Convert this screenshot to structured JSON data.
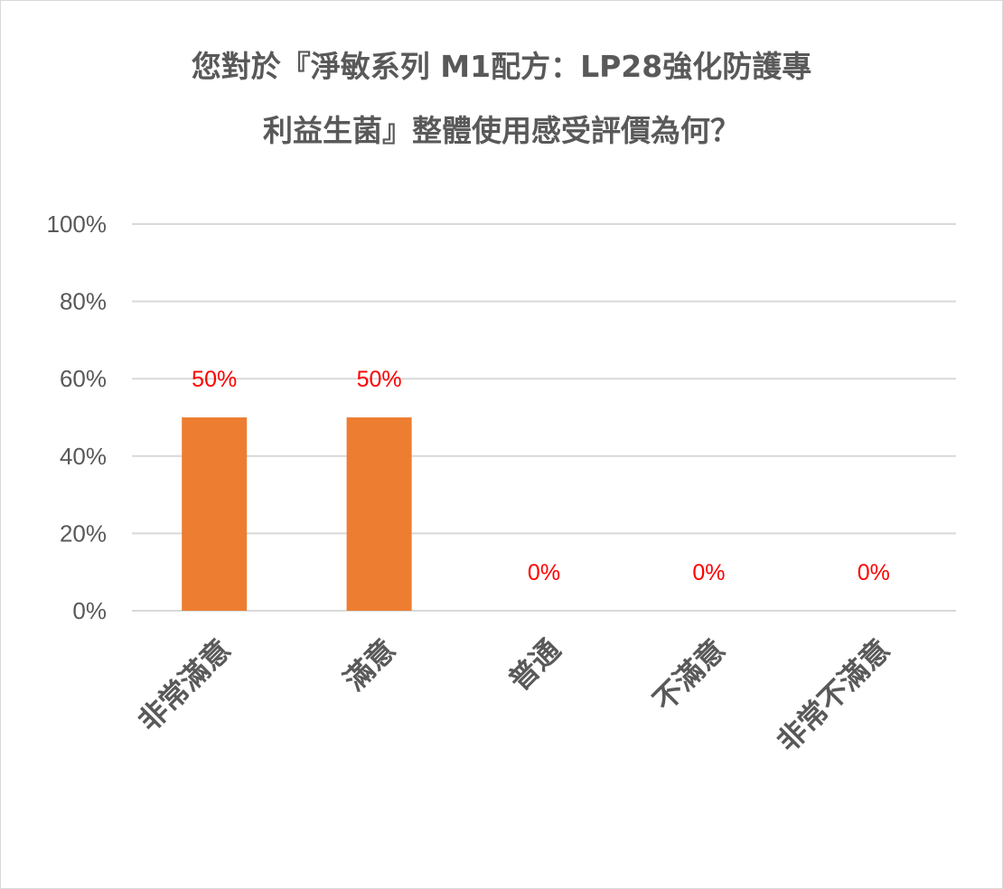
{
  "chart_data": {
    "type": "bar",
    "title_lines": [
      "您對於『淨敏系列 M1配方：LP28強化防護專",
      "利益生菌』整體使用感受評價為何？"
    ],
    "categories": [
      "非常滿意",
      "滿意",
      "普通",
      "不滿意",
      "非常不滿意"
    ],
    "values": [
      50,
      50,
      0,
      0,
      0
    ],
    "data_labels": [
      "50%",
      "50%",
      "0%",
      "0%",
      "0%"
    ],
    "y_ticks": [
      0,
      20,
      40,
      60,
      80,
      100
    ],
    "y_tick_labels": [
      "0%",
      "20%",
      "40%",
      "60%",
      "80%",
      "100%"
    ],
    "ylim": [
      0,
      100
    ],
    "xlabel": "",
    "ylabel": "",
    "grid": true,
    "legend": "none",
    "colors": {
      "bar": "#ed7d31",
      "data_label": "#ff0000",
      "grid": "#d9d9d9",
      "text": "#595959"
    }
  }
}
